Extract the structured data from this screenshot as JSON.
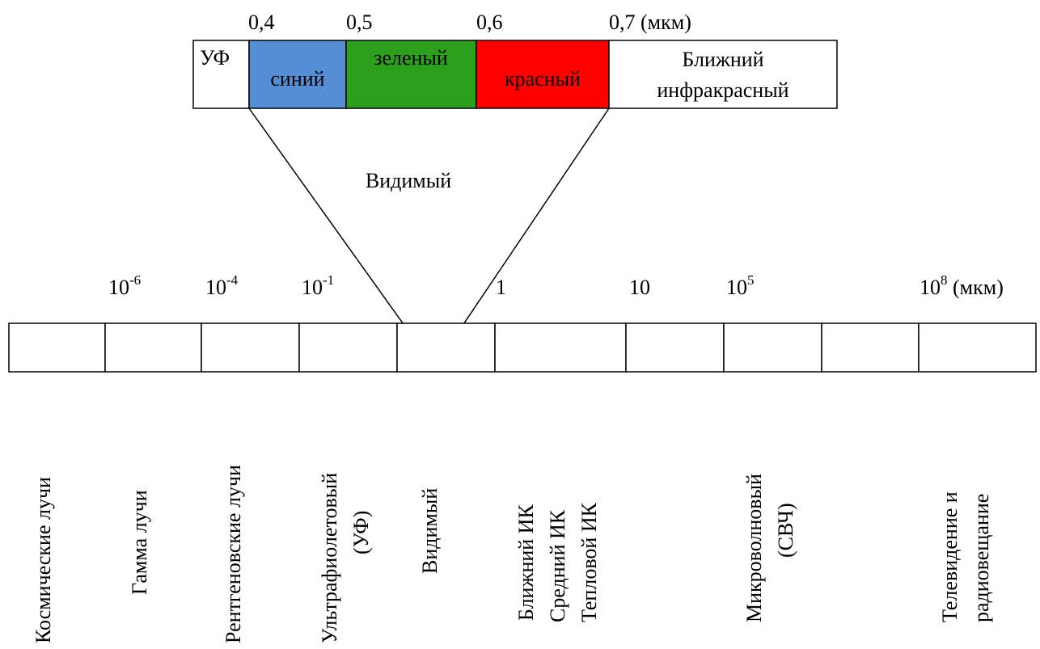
{
  "top_scale": {
    "ticks": [
      "0,4",
      "0,5",
      "0,6",
      "0,7 (мкм)"
    ]
  },
  "top_bands": [
    {
      "label": "УФ",
      "color": "#ffffff"
    },
    {
      "label": "синий",
      "color": "#558ed5"
    },
    {
      "label": "зеленый",
      "color": "#2ca01c"
    },
    {
      "label": "красный",
      "color": "#ff0000"
    },
    {
      "label_lines": [
        "Ближний",
        "инфракрасный"
      ],
      "color": "#ffffff"
    }
  ],
  "visible_label": "Видимый",
  "bottom_scale": {
    "ticks": [
      {
        "base": "10",
        "exp": "-6"
      },
      {
        "base": "10",
        "exp": "-4"
      },
      {
        "base": "10",
        "exp": "-1"
      },
      {
        "base": "1",
        "exp": ""
      },
      {
        "base": "10",
        "exp": ""
      },
      {
        "base": "10",
        "exp": "5"
      },
      {
        "base": "10",
        "exp": "8",
        "suffix": " (мкм)"
      }
    ]
  },
  "spectrum_labels": [
    [
      "Космические лучи"
    ],
    [
      "Гамма лучи"
    ],
    [
      "Рентгеновские лучи"
    ],
    [
      "Ультрафиолетовый",
      "(УФ)"
    ],
    [
      "Видимый"
    ],
    [
      "Ближний ИК",
      "Средний ИК",
      "Тепловой ИК"
    ],
    [
      "Микроволновый",
      "(СВЧ)"
    ],
    [
      "Телевидение и",
      "радиовещание"
    ]
  ]
}
